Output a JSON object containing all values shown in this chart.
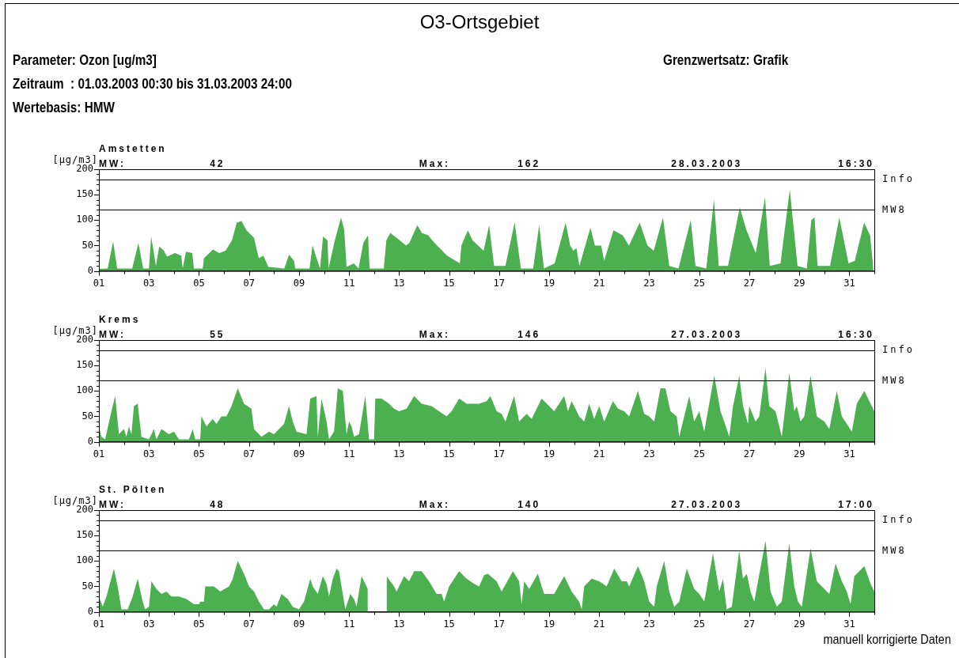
{
  "chart_data": [
    {
      "type": "other",
      "title": "O3-Ortsgebiet",
      "annotations": [
        "Parameter: Ozon [ug/m3]",
        "Zeitraum  : 01.03.2003 00:30 bis 31.03.2003 24:00",
        "Wertebasis: HMW",
        "Grenzwertsatz: Grafik"
      ]
    },
    {
      "type": "area",
      "title": "Amstetten",
      "ylabel": "[µg/m3]",
      "annotations": [
        "MW:",
        "42",
        "Max:",
        "162",
        "28.03.2003",
        "16:30"
      ],
      "xlim": [
        1,
        32
      ],
      "xticks": [
        {
          "value": 1,
          "label": "01"
        },
        {
          "value": 2,
          "label": null
        },
        {
          "value": 3,
          "label": "03"
        },
        {
          "value": 4,
          "label": null
        },
        {
          "value": 5,
          "label": "05"
        },
        {
          "value": 6,
          "label": null
        },
        {
          "value": 7,
          "label": "07"
        },
        {
          "value": 8,
          "label": null
        },
        {
          "value": 9,
          "label": "09"
        },
        {
          "value": 10,
          "label": null
        },
        {
          "value": 11,
          "label": "11"
        },
        {
          "value": 12,
          "label": null
        },
        {
          "value": 13,
          "label": "13"
        },
        {
          "value": 14,
          "label": null
        },
        {
          "value": 15,
          "label": "15"
        },
        {
          "value": 16,
          "label": null
        },
        {
          "value": 17,
          "label": "17"
        },
        {
          "value": 18,
          "label": null
        },
        {
          "value": 19,
          "label": "19"
        },
        {
          "value": 20,
          "label": null
        },
        {
          "value": 21,
          "label": "21"
        },
        {
          "value": 22,
          "label": null
        },
        {
          "value": 23,
          "label": "23"
        },
        {
          "value": 24,
          "label": null
        },
        {
          "value": 25,
          "label": "25"
        },
        {
          "value": 26,
          "label": null
        },
        {
          "value": 27,
          "label": "27"
        },
        {
          "value": 28,
          "label": null
        },
        {
          "value": 29,
          "label": "29"
        },
        {
          "value": 30,
          "label": null
        },
        {
          "value": 31,
          "label": "31"
        },
        {
          "value": 32,
          "label": null
        }
      ],
      "ylim": [
        0,
        200
      ],
      "yticks": [
        0,
        {
          "value": 10,
          "label": null
        },
        {
          "value": 20,
          "label": null
        },
        {
          "value": 30,
          "label": null
        },
        {
          "value": 40,
          "label": null
        },
        50,
        {
          "value": 60,
          "label": null
        },
        {
          "value": 70,
          "label": null
        },
        {
          "value": 80,
          "label": null
        },
        {
          "value": 90,
          "label": null
        },
        100,
        {
          "value": 110,
          "label": null
        },
        {
          "value": 120,
          "label": null
        },
        {
          "value": 130,
          "label": null
        },
        {
          "value": 140,
          "label": null
        },
        150,
        {
          "value": 160,
          "label": null
        },
        {
          "value": 170,
          "label": null
        },
        {
          "value": 180,
          "label": null
        },
        {
          "value": 190,
          "label": null
        },
        200
      ],
      "ref_lines": [
        {
          "axis": "y",
          "value": 180,
          "label": "Info",
          "color": "#000000"
        },
        {
          "axis": "y",
          "value": 120,
          "label": "MW8",
          "color": "#000000"
        }
      ],
      "series": [
        {
          "color": "#4caf50",
          "x": [
            1.0,
            1.35,
            1.57,
            1.73,
            2.33,
            2.58,
            2.77,
            3.0,
            3.09,
            3.28,
            3.41,
            3.6,
            3.72,
            4.04,
            4.29,
            4.35,
            4.48,
            4.73,
            4.8,
            5.15,
            5.2,
            5.56,
            5.81,
            6.06,
            6.32,
            6.51,
            6.7,
            6.9,
            7.2,
            7.39,
            7.58,
            7.77,
            8.41,
            8.6,
            8.8,
            8.85,
            9.42,
            9.54,
            9.67,
            9.84,
            9.96,
            10.14,
            10.18,
            10.43,
            10.68,
            10.81,
            10.9,
            11.19,
            11.38,
            11.57,
            11.76,
            11.82,
            12.39,
            12.49,
            12.65,
            13.03,
            13.28,
            13.41,
            13.73,
            13.91,
            14.16,
            14.42,
            14.92,
            15.43,
            15.49,
            15.75,
            15.94,
            16.38,
            16.6,
            16.8,
            17.25,
            17.62,
            17.87,
            18.36,
            18.6,
            18.79,
            19.22,
            19.66,
            19.84,
            19.97,
            20.09,
            20.21,
            20.65,
            20.83,
            21.08,
            21.2,
            21.57,
            21.94,
            22.19,
            22.62,
            22.93,
            23.18,
            23.55,
            23.8,
            24.17,
            24.66,
            24.85,
            25.28,
            25.59,
            25.78,
            26.15,
            26.62,
            26.89,
            27.26,
            27.63,
            27.82,
            28.25,
            28.62,
            28.93,
            29.3,
            29.48,
            29.61,
            29.73,
            30.23,
            30.6,
            30.97,
            31.22,
            31.59,
            31.83,
            31.96
          ],
          "values": [
            4,
            5,
            58,
            5,
            5,
            55,
            5,
            5,
            68,
            10,
            48,
            40,
            28,
            35,
            30,
            5,
            38,
            35,
            5,
            5,
            25,
            42,
            35,
            40,
            60,
            95,
            98,
            80,
            65,
            25,
            30,
            8,
            5,
            32,
            20,
            5,
            5,
            50,
            30,
            5,
            68,
            60,
            5,
            60,
            105,
            80,
            8,
            15,
            5,
            55,
            70,
            5,
            5,
            60,
            75,
            60,
            50,
            55,
            90,
            75,
            70,
            55,
            30,
            15,
            50,
            80,
            60,
            40,
            90,
            10,
            10,
            95,
            5,
            5,
            90,
            5,
            15,
            95,
            50,
            40,
            45,
            10,
            85,
            50,
            50,
            20,
            80,
            70,
            50,
            95,
            50,
            40,
            105,
            10,
            5,
            100,
            10,
            5,
            140,
            10,
            10,
            125,
            80,
            35,
            145,
            10,
            15,
            160,
            10,
            5,
            100,
            105,
            10,
            10,
            105,
            15,
            20,
            95,
            70,
            5
          ]
        }
      ]
    },
    {
      "type": "area",
      "title": "Krems",
      "ylabel": "[µg/m3]",
      "annotations": [
        "MW:",
        "55",
        "Max:",
        "146",
        "27.03.2003",
        "16:30"
      ],
      "xlim": [
        1,
        32
      ],
      "xticks": [
        {
          "value": 1,
          "label": "01"
        },
        {
          "value": 2,
          "label": null
        },
        {
          "value": 3,
          "label": "03"
        },
        {
          "value": 4,
          "label": null
        },
        {
          "value": 5,
          "label": "05"
        },
        {
          "value": 6,
          "label": null
        },
        {
          "value": 7,
          "label": "07"
        },
        {
          "value": 8,
          "label": null
        },
        {
          "value": 9,
          "label": "09"
        },
        {
          "value": 10,
          "label": null
        },
        {
          "value": 11,
          "label": "11"
        },
        {
          "value": 12,
          "label": null
        },
        {
          "value": 13,
          "label": "13"
        },
        {
          "value": 14,
          "label": null
        },
        {
          "value": 15,
          "label": "15"
        },
        {
          "value": 16,
          "label": null
        },
        {
          "value": 17,
          "label": "17"
        },
        {
          "value": 18,
          "label": null
        },
        {
          "value": 19,
          "label": "19"
        },
        {
          "value": 20,
          "label": null
        },
        {
          "value": 21,
          "label": "21"
        },
        {
          "value": 22,
          "label": null
        },
        {
          "value": 23,
          "label": "23"
        },
        {
          "value": 24,
          "label": null
        },
        {
          "value": 25,
          "label": "25"
        },
        {
          "value": 26,
          "label": null
        },
        {
          "value": 27,
          "label": "27"
        },
        {
          "value": 28,
          "label": null
        },
        {
          "value": 29,
          "label": "29"
        },
        {
          "value": 30,
          "label": null
        },
        {
          "value": 31,
          "label": "31"
        },
        {
          "value": 32,
          "label": null
        }
      ],
      "ylim": [
        0,
        200
      ],
      "yticks": [
        0,
        {
          "value": 10,
          "label": null
        },
        {
          "value": 20,
          "label": null
        },
        {
          "value": 30,
          "label": null
        },
        {
          "value": 40,
          "label": null
        },
        50,
        {
          "value": 60,
          "label": null
        },
        {
          "value": 70,
          "label": null
        },
        {
          "value": 80,
          "label": null
        },
        {
          "value": 90,
          "label": null
        },
        100,
        {
          "value": 110,
          "label": null
        },
        {
          "value": 120,
          "label": null
        },
        {
          "value": 130,
          "label": null
        },
        {
          "value": 140,
          "label": null
        },
        150,
        {
          "value": 160,
          "label": null
        },
        {
          "value": 170,
          "label": null
        },
        {
          "value": 180,
          "label": null
        },
        {
          "value": 190,
          "label": null
        },
        200
      ],
      "ref_lines": [
        {
          "axis": "y",
          "value": 180,
          "label": "Info",
          "color": "#000000"
        },
        {
          "axis": "y",
          "value": 120,
          "label": "MW8",
          "color": "#000000"
        }
      ],
      "series": [
        {
          "color": "#4caf50",
          "x": [
            1.0,
            1.1,
            1.25,
            1.5,
            1.65,
            1.8,
            2.0,
            2.1,
            2.2,
            2.3,
            2.4,
            2.55,
            2.7,
            3.0,
            3.2,
            3.3,
            3.5,
            3.8,
            4.0,
            4.2,
            4.6,
            4.75,
            4.85,
            5.05,
            5.1,
            5.3,
            5.55,
            5.7,
            5.9,
            6.1,
            6.3,
            6.55,
            6.8,
            7.1,
            7.2,
            7.5,
            7.8,
            8.0,
            8.4,
            8.6,
            8.75,
            8.9,
            9.3,
            9.45,
            9.7,
            9.75,
            9.9,
            10.1,
            10.2,
            10.4,
            10.55,
            10.75,
            10.9,
            11.0,
            11.1,
            11.2,
            11.4,
            11.65,
            11.8,
            12.0,
            12.05,
            12.3,
            12.6,
            12.8,
            13.0,
            13.3,
            13.6,
            13.9,
            14.3,
            14.6,
            14.9,
            15.1,
            15.4,
            15.7,
            16.0,
            16.2,
            16.5,
            16.65,
            16.9,
            17.1,
            17.25,
            17.6,
            17.8,
            18.1,
            18.3,
            18.7,
            19.0,
            19.2,
            19.6,
            19.75,
            19.9,
            20.2,
            20.4,
            20.6,
            20.8,
            21.0,
            21.2,
            21.55,
            21.75,
            22.0,
            22.2,
            22.55,
            22.8,
            23.0,
            23.2,
            23.45,
            23.65,
            23.85,
            24.1,
            24.2,
            24.4,
            24.6,
            24.8,
            25.0,
            25.2,
            25.6,
            25.85,
            26.0,
            26.2,
            26.35,
            26.6,
            26.75,
            26.95,
            27.0,
            27.25,
            27.4,
            27.65,
            27.8,
            28.05,
            28.3,
            28.6,
            28.8,
            28.9,
            29.05,
            29.2,
            29.45,
            29.7,
            30.0,
            30.2,
            30.5,
            30.7,
            30.9,
            31.1,
            31.3,
            31.6,
            31.85,
            32.0
          ],
          "values": [
            30,
            10,
            5,
            60,
            90,
            15,
            25,
            10,
            30,
            15,
            70,
            75,
            10,
            5,
            25,
            5,
            25,
            15,
            20,
            5,
            5,
            25,
            5,
            5,
            50,
            30,
            45,
            35,
            50,
            50,
            70,
            105,
            75,
            65,
            25,
            10,
            20,
            15,
            35,
            70,
            40,
            20,
            15,
            85,
            90,
            10,
            85,
            40,
            5,
            20,
            105,
            100,
            15,
            40,
            30,
            10,
            15,
            90,
            5,
            5,
            85,
            85,
            75,
            65,
            60,
            65,
            90,
            75,
            70,
            60,
            50,
            60,
            85,
            75,
            75,
            75,
            80,
            90,
            60,
            55,
            40,
            90,
            40,
            55,
            45,
            85,
            70,
            60,
            90,
            60,
            80,
            50,
            40,
            75,
            45,
            70,
            40,
            80,
            65,
            60,
            50,
            100,
            55,
            50,
            40,
            105,
            105,
            60,
            50,
            10,
            50,
            90,
            40,
            60,
            20,
            130,
            60,
            40,
            10,
            70,
            130,
            70,
            35,
            70,
            40,
            50,
            145,
            70,
            60,
            10,
            135,
            60,
            70,
            40,
            50,
            130,
            50,
            40,
            25,
            100,
            50,
            35,
            20,
            75,
            100,
            75,
            60
          ]
        }
      ]
    },
    {
      "type": "area",
      "title": "St. Pölten",
      "ylabel": "[µg/m3]",
      "annotations": [
        "MW:",
        "48",
        "Max:",
        "140",
        "27.03.2003",
        "17:00",
        "manuell korrigierte Daten"
      ],
      "xlim": [
        1,
        32
      ],
      "xticks": [
        {
          "value": 1,
          "label": "01"
        },
        {
          "value": 2,
          "label": null
        },
        {
          "value": 3,
          "label": "03"
        },
        {
          "value": 4,
          "label": null
        },
        {
          "value": 5,
          "label": "05"
        },
        {
          "value": 6,
          "label": null
        },
        {
          "value": 7,
          "label": "07"
        },
        {
          "value": 8,
          "label": null
        },
        {
          "value": 9,
          "label": "09"
        },
        {
          "value": 10,
          "label": null
        },
        {
          "value": 11,
          "label": "11"
        },
        {
          "value": 12,
          "label": null
        },
        {
          "value": 13,
          "label": "13"
        },
        {
          "value": 14,
          "label": null
        },
        {
          "value": 15,
          "label": "15"
        },
        {
          "value": 16,
          "label": null
        },
        {
          "value": 17,
          "label": "17"
        },
        {
          "value": 18,
          "label": null
        },
        {
          "value": 19,
          "label": "19"
        },
        {
          "value": 20,
          "label": null
        },
        {
          "value": 21,
          "label": "21"
        },
        {
          "value": 22,
          "label": null
        },
        {
          "value": 23,
          "label": "23"
        },
        {
          "value": 24,
          "label": null
        },
        {
          "value": 25,
          "label": "25"
        },
        {
          "value": 26,
          "label": null
        },
        {
          "value": 27,
          "label": "27"
        },
        {
          "value": 28,
          "label": null
        },
        {
          "value": 29,
          "label": "29"
        },
        {
          "value": 30,
          "label": null
        },
        {
          "value": 31,
          "label": "31"
        },
        {
          "value": 32,
          "label": null
        }
      ],
      "ylim": [
        0,
        200
      ],
      "yticks": [
        0,
        {
          "value": 10,
          "label": null
        },
        {
          "value": 20,
          "label": null
        },
        {
          "value": 30,
          "label": null
        },
        {
          "value": 40,
          "label": null
        },
        50,
        {
          "value": 60,
          "label": null
        },
        {
          "value": 70,
          "label": null
        },
        {
          "value": 80,
          "label": null
        },
        {
          "value": 90,
          "label": null
        },
        100,
        {
          "value": 110,
          "label": null
        },
        {
          "value": 120,
          "label": null
        },
        {
          "value": 130,
          "label": null
        },
        {
          "value": 140,
          "label": null
        },
        150,
        {
          "value": 160,
          "label": null
        },
        {
          "value": 170,
          "label": null
        },
        {
          "value": 180,
          "label": null
        },
        {
          "value": 190,
          "label": null
        },
        200
      ],
      "ref_lines": [
        {
          "axis": "y",
          "value": 180,
          "label": "Info",
          "color": "#000000"
        },
        {
          "axis": "y",
          "value": 120,
          "label": "MW8",
          "color": "#000000"
        }
      ],
      "series": [
        {
          "color": "#4caf50",
          "x": [
            1.0,
            1.05,
            1.15,
            1.3,
            1.6,
            1.75,
            1.9,
            2.15,
            2.35,
            2.55,
            2.75,
            2.85,
            3.0,
            3.1,
            3.3,
            3.5,
            3.7,
            3.9,
            4.2,
            4.5,
            4.8,
            5.0,
            5.05,
            5.2,
            5.25,
            5.6,
            5.85,
            6.2,
            6.35,
            6.55,
            6.8,
            7.0,
            7.2,
            7.4,
            7.6,
            7.8,
            8.0,
            8.1,
            8.3,
            8.55,
            8.75,
            9.0,
            9.2,
            9.45,
            9.55,
            9.75,
            9.95,
            10.1,
            10.2,
            10.35,
            10.5,
            10.6,
            10.85,
            11.05,
            11.2,
            11.3,
            11.5,
            11.7,
            11.75,
            11.8,
            12.45,
            12.5,
            12.8,
            12.9,
            13.2,
            13.4,
            13.6,
            13.9,
            14.2,
            14.5,
            14.7,
            14.8,
            15.0,
            15.4,
            15.7,
            16.0,
            16.2,
            16.4,
            16.55,
            16.9,
            17.1,
            17.55,
            17.8,
            17.9,
            18.0,
            18.2,
            18.55,
            18.7,
            18.8,
            19.2,
            19.6,
            19.9,
            20.2,
            20.3,
            20.4,
            20.7,
            21.0,
            21.3,
            21.6,
            21.9,
            22.1,
            22.2,
            22.55,
            22.8,
            23.0,
            23.2,
            23.3,
            23.6,
            23.8,
            24.0,
            24.2,
            24.5,
            24.8,
            25.0,
            25.2,
            25.55,
            25.8,
            25.95,
            26.1,
            26.3,
            26.6,
            26.75,
            26.9,
            27.05,
            27.2,
            27.65,
            27.85,
            28.1,
            28.3,
            28.6,
            28.8,
            28.95,
            29.1,
            29.45,
            29.7,
            29.9,
            30.2,
            30.45,
            30.7,
            30.9,
            31.05,
            31.2,
            31.6,
            31.85,
            32.0
          ],
          "values": [
            10,
            25,
            10,
            30,
            85,
            50,
            5,
            5,
            30,
            65,
            20,
            5,
            10,
            60,
            45,
            35,
            40,
            30,
            30,
            25,
            15,
            15,
            20,
            20,
            50,
            50,
            40,
            50,
            65,
            100,
            75,
            50,
            40,
            20,
            5,
            5,
            15,
            10,
            35,
            25,
            10,
            5,
            20,
            65,
            50,
            35,
            70,
            55,
            30,
            65,
            85,
            80,
            5,
            35,
            25,
            10,
            70,
            50,
            45,
            null,
            null,
            70,
            50,
            40,
            70,
            60,
            80,
            80,
            60,
            35,
            35,
            20,
            50,
            80,
            65,
            55,
            50,
            72,
            75,
            60,
            40,
            80,
            60,
            15,
            60,
            45,
            75,
            50,
            35,
            35,
            70,
            40,
            20,
            5,
            50,
            65,
            60,
            50,
            85,
            60,
            60,
            50,
            90,
            60,
            20,
            10,
            50,
            100,
            40,
            10,
            20,
            85,
            45,
            35,
            20,
            115,
            40,
            65,
            5,
            10,
            120,
            65,
            75,
            40,
            20,
            140,
            40,
            10,
            20,
            135,
            50,
            20,
            10,
            125,
            60,
            50,
            35,
            95,
            60,
            40,
            15,
            70,
            90,
            55,
            40
          ]
        }
      ]
    }
  ]
}
